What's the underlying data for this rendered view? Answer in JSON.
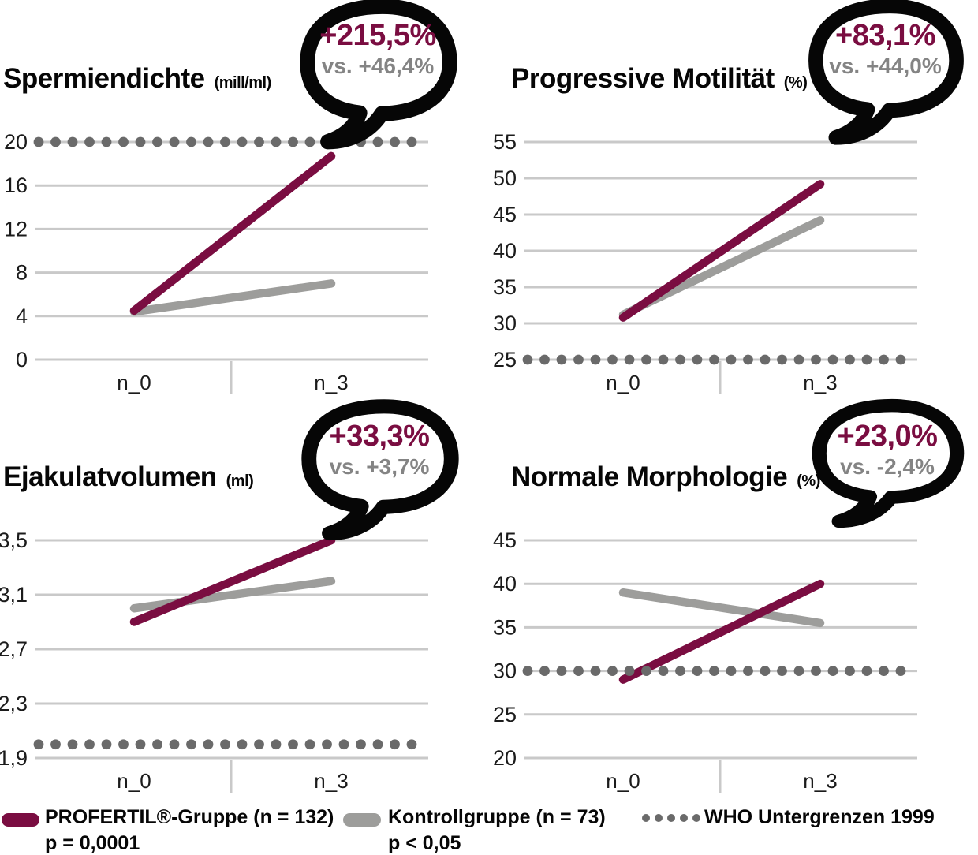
{
  "colors": {
    "profertil": "#7a0d41",
    "kontrolle": "#9d9d9b",
    "who_dot": "#6a6a6a",
    "grid": "#c9c9c9",
    "axis_text": "#1b1b1b",
    "callout_vs_text": "#848484",
    "bubble_border": "#060606",
    "bubble_fill": "#ffffff"
  },
  "chart_data": [
    {
      "type": "line",
      "title": "Spermiendichte",
      "unit": "(mill/ml)",
      "callout": {
        "main": "+215,5%",
        "vs": "vs. +46,4%"
      },
      "categories": [
        "n_0",
        "n_3"
      ],
      "series": [
        {
          "name": "PROFERTIL®-Gruppe (n = 132)",
          "values": [
            4.5,
            18.7
          ]
        },
        {
          "name": "Kontrollgruppe (n = 73)",
          "values": [
            4.4,
            7.0
          ]
        }
      ],
      "who_line": {
        "value": 20
      },
      "ylim": [
        0,
        20
      ],
      "yticks": {
        "values": [
          0,
          4,
          8,
          12,
          16,
          20
        ],
        "labels": [
          "0",
          "4",
          "8",
          "12",
          "16",
          "20"
        ]
      },
      "grid": true,
      "legend_position": "bottom"
    },
    {
      "type": "line",
      "title": "Progressive Motilität",
      "unit": "(%)",
      "callout": {
        "main": "+83,1%",
        "vs": "vs. +44,0%"
      },
      "categories": [
        "n_0",
        "n_3"
      ],
      "series": [
        {
          "name": "PROFERTIL®-Gruppe (n = 132)",
          "values": [
            30.8,
            49.2
          ]
        },
        {
          "name": "Kontrollgruppe (n = 73)",
          "values": [
            31.2,
            44.2
          ]
        }
      ],
      "who_line": {
        "value": 25
      },
      "ylim": [
        25,
        55
      ],
      "yticks": {
        "values": [
          25,
          30,
          35,
          40,
          45,
          50,
          55
        ],
        "labels": [
          "25",
          "30",
          "35",
          "40",
          "45",
          "50",
          "55"
        ]
      },
      "grid": true,
      "legend_position": "bottom"
    },
    {
      "type": "line",
      "title": "Ejakulatvolumen",
      "unit": "(ml)",
      "callout": {
        "main": "+33,3%",
        "vs": "vs. +3,7%"
      },
      "categories": [
        "n_0",
        "n_3"
      ],
      "series": [
        {
          "name": "PROFERTIL®-Gruppe (n = 132)",
          "values": [
            2.9,
            3.5
          ]
        },
        {
          "name": "Kontrollgruppe (n = 73)",
          "values": [
            3.0,
            3.2
          ]
        }
      ],
      "who_line": {
        "value": 2.0
      },
      "ylim": [
        1.9,
        3.5
      ],
      "yticks": {
        "values": [
          1.9,
          2.3,
          2.7,
          3.1,
          3.5
        ],
        "labels": [
          "1,9",
          "2,3",
          "2,7",
          "3,1",
          "3,5"
        ]
      },
      "grid": true,
      "legend_position": "bottom"
    },
    {
      "type": "line",
      "title": "Normale Morphologie",
      "unit": "(%)",
      "callout": {
        "main": "+23,0%",
        "vs": "vs. -2,4%"
      },
      "categories": [
        "n_0",
        "n_3"
      ],
      "series": [
        {
          "name": "PROFERTIL®-Gruppe (n = 132)",
          "values": [
            29.0,
            40.0
          ]
        },
        {
          "name": "Kontrollgruppe (n = 73)",
          "values": [
            39.0,
            35.5
          ]
        }
      ],
      "who_line": {
        "value": 30
      },
      "ylim": [
        20,
        45
      ],
      "yticks": {
        "values": [
          20,
          25,
          30,
          35,
          40,
          45
        ],
        "labels": [
          "20",
          "25",
          "30",
          "35",
          "40",
          "45"
        ]
      },
      "grid": true,
      "legend_position": "bottom"
    }
  ],
  "legend": {
    "items": [
      {
        "label": "PROFERTIL®-Gruppe (n = 132)",
        "sub": "p = 0,0001",
        "marker": "profertil-line"
      },
      {
        "label": "Kontrollgruppe (n = 73)",
        "sub": "p < 0,05",
        "marker": "kontrolle-line"
      },
      {
        "label": "WHO Untergrenzen 1999",
        "sub": "",
        "marker": "who-dotted"
      }
    ]
  }
}
